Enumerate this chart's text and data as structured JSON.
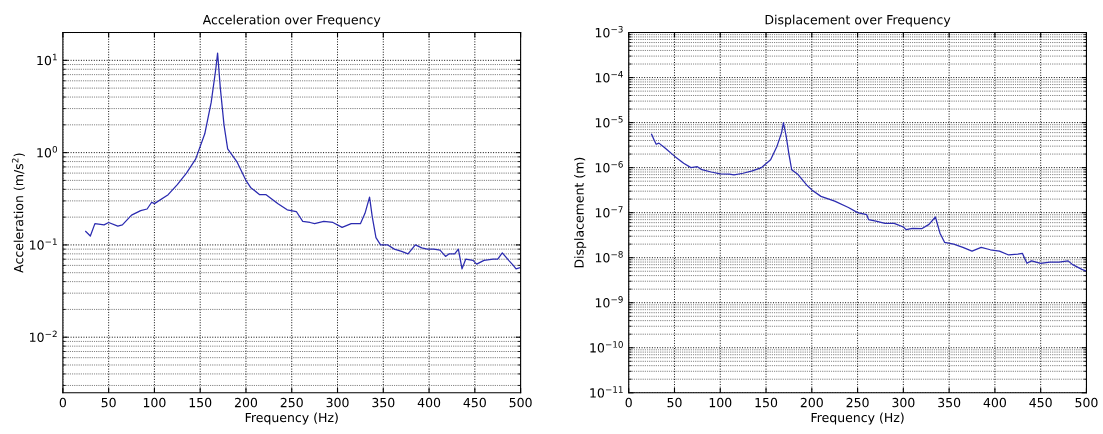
{
  "chart_data": [
    {
      "type": "line",
      "title": "Acceleration over Frequency",
      "xlabel": "Frequency (Hz)",
      "ylabel": "Acceleration (m/s$^{2}$)",
      "log": "y",
      "grid": true,
      "xlim": [
        0,
        500
      ],
      "xticks": [
        0,
        50,
        100,
        150,
        200,
        250,
        300,
        350,
        400,
        450,
        500
      ],
      "ylim": [
        0.0025,
        20
      ],
      "yticks": [
        {
          "value": 0.01,
          "label": "10$^{−2}$"
        },
        {
          "value": 0.1,
          "label": "10$^{−1}$"
        },
        {
          "value": 1,
          "label": "10$^{0}$"
        },
        {
          "value": 10,
          "label": "10$^{1}$"
        }
      ],
      "series": [
        {
          "color": "#2b2bb0",
          "x": [
            25,
            30,
            35,
            45,
            50,
            60,
            65,
            75,
            85,
            92,
            97,
            100,
            115,
            125,
            135,
            145,
            155,
            162,
            167,
            169,
            172,
            176,
            180,
            190,
            200,
            205,
            215,
            222,
            235,
            245,
            255,
            262,
            270,
            275,
            285,
            295,
            305,
            315,
            325,
            330,
            335,
            338,
            342,
            347,
            355,
            362,
            370,
            377,
            385,
            392,
            398,
            405,
            412,
            418,
            422,
            428,
            432,
            436,
            440,
            448,
            452,
            460,
            470,
            475,
            480,
            487,
            492,
            495,
            500
          ],
          "values": [
            0.14,
            0.125,
            0.17,
            0.165,
            0.175,
            0.16,
            0.165,
            0.21,
            0.235,
            0.245,
            0.29,
            0.28,
            0.35,
            0.45,
            0.6,
            0.85,
            1.6,
            3.5,
            8,
            12,
            5,
            2,
            1.1,
            0.8,
            0.5,
            0.42,
            0.35,
            0.35,
            0.28,
            0.24,
            0.23,
            0.18,
            0.175,
            0.17,
            0.18,
            0.175,
            0.155,
            0.17,
            0.17,
            0.22,
            0.33,
            0.2,
            0.12,
            0.1,
            0.1,
            0.09,
            0.085,
            0.08,
            0.1,
            0.093,
            0.09,
            0.09,
            0.088,
            0.075,
            0.08,
            0.08,
            0.09,
            0.055,
            0.07,
            0.068,
            0.062,
            0.068,
            0.07,
            0.07,
            0.082,
            0.068,
            0.06,
            0.055,
            0.057
          ]
        }
      ]
    },
    {
      "type": "line",
      "title": "Displacement over Frequency",
      "xlabel": "Frequency (Hz)",
      "ylabel": "Displacement (m)",
      "log": "y",
      "grid": true,
      "xlim": [
        0,
        500
      ],
      "xticks": [
        0,
        50,
        100,
        150,
        200,
        250,
        300,
        350,
        400,
        450,
        500
      ],
      "ylim": [
        1e-11,
        0.001
      ],
      "yticks": [
        {
          "value": 1e-11,
          "label": "10$^{−11}$"
        },
        {
          "value": 1e-10,
          "label": "10$^{−10}$"
        },
        {
          "value": 1e-09,
          "label": "10$^{−9}$"
        },
        {
          "value": 1e-08,
          "label": "10$^{−8}$"
        },
        {
          "value": 1e-07,
          "label": "10$^{−7}$"
        },
        {
          "value": 1e-06,
          "label": "10$^{−6}$"
        },
        {
          "value": 1e-05,
          "label": "10$^{−5}$"
        },
        {
          "value": 0.0001,
          "label": "10$^{−4}$"
        },
        {
          "value": 0.001,
          "label": "10$^{−3}$"
        }
      ],
      "series": [
        {
          "color": "#2b2bb0",
          "x": [
            25,
            28,
            30,
            33,
            40,
            50,
            60,
            68,
            75,
            80,
            90,
            100,
            110,
            115,
            125,
            135,
            145,
            155,
            162,
            167,
            169,
            172,
            175,
            178,
            185,
            195,
            200,
            210,
            225,
            240,
            250,
            260,
            262,
            270,
            280,
            290,
            300,
            303,
            310,
            320,
            328,
            335,
            340,
            345,
            355,
            365,
            375,
            385,
            395,
            405,
            415,
            425,
            430,
            435,
            440,
            450,
            460,
            470,
            480,
            485,
            495,
            500
          ],
          "values": [
            5.5e-06,
            4e-06,
            3.3e-06,
            3.5e-06,
            2.7e-06,
            1.8e-06,
            1.25e-06,
            1e-06,
            1.05e-06,
            9e-07,
            8e-07,
            7.3e-07,
            7.2e-07,
            6.9e-07,
            7.5e-07,
            8.5e-07,
            1e-06,
            1.5e-06,
            3e-06,
            6e-06,
            1e-05,
            5e-06,
            2e-06,
            9e-07,
            7e-07,
            4e-07,
            3.2e-07,
            2.3e-07,
            1.8e-07,
            1.3e-07,
            1e-07,
            9e-08,
            7e-08,
            6.5e-08,
            5.8e-08,
            5.8e-08,
            4.8e-08,
            4.2e-08,
            4.5e-08,
            4.4e-08,
            5.5e-08,
            8e-08,
            3.5e-08,
            2.2e-08,
            2e-08,
            1.7e-08,
            1.4e-08,
            1.7e-08,
            1.5e-08,
            1.4e-08,
            1.15e-08,
            1.2e-08,
            1.25e-08,
            7.5e-09,
            8.5e-09,
            7.5e-09,
            8e-09,
            8e-09,
            8.5e-09,
            7e-09,
            5.5e-09,
            5e-09
          ]
        }
      ]
    }
  ]
}
